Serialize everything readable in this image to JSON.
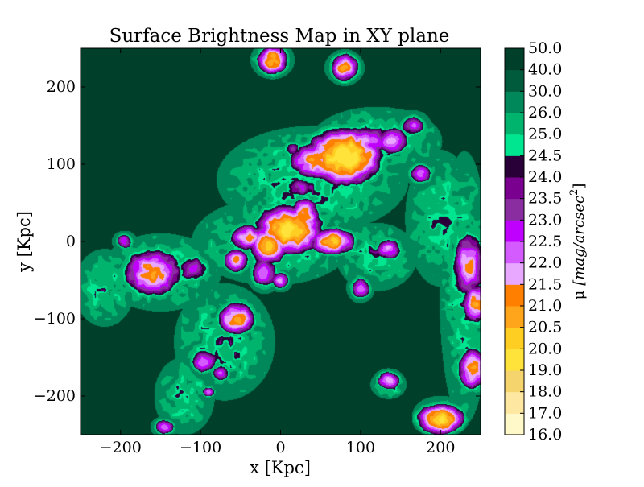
{
  "chart_data": {
    "type": "heatmap",
    "title": "Surface Brightness Map in XY plane",
    "xlabel": "x [Kpc]",
    "ylabel": "y [Kpc]",
    "xlim": [
      -250,
      250
    ],
    "ylim": [
      -250,
      250
    ],
    "x_ticks": [
      -200,
      -100,
      0,
      100,
      200
    ],
    "x_tick_labels": [
      "−200",
      "−100",
      "0",
      "100",
      "200"
    ],
    "y_ticks": [
      -200,
      -100,
      0,
      100,
      200
    ],
    "y_tick_labels": [
      "−200",
      "−100",
      "0",
      "100",
      "200"
    ],
    "grid": false,
    "colorbar": {
      "label_mu": "μ",
      "label_units": "[mag/arcsec",
      "label_exp": "2",
      "label_close": "]",
      "levels": [
        16.0,
        17.0,
        18.0,
        19.0,
        20.0,
        20.5,
        21.0,
        21.5,
        22.0,
        22.5,
        23.0,
        23.5,
        24.0,
        24.5,
        25.0,
        26.0,
        30.0,
        40.0,
        50.0
      ],
      "level_labels": [
        "16.0",
        "17.0",
        "18.0",
        "19.0",
        "20.0",
        "20.5",
        "21.0",
        "21.5",
        "22.0",
        "22.5",
        "23.0",
        "23.5",
        "24.0",
        "24.5",
        "25.0",
        "26.0",
        "30.0",
        "40.0",
        "50.0"
      ],
      "colors": [
        "#fff8c8",
        "#fee7a0",
        "#f5d46e",
        "#ffe23a",
        "#ffce22",
        "#ffa51c",
        "#ff7f00",
        "#e8a8ff",
        "#d45cff",
        "#bf00ff",
        "#8a2da0",
        "#7a0090",
        "#2a0038",
        "#00e690",
        "#00b46e",
        "#00875a",
        "#005a3c",
        "#00402a"
      ]
    },
    "background_color": "#00402a",
    "blobs": [
      {
        "x": 80,
        "y": 110,
        "sx": 28,
        "sy": 22,
        "peak": 19.5
      },
      {
        "x": 45,
        "y": 105,
        "sx": 22,
        "sy": 16,
        "peak": 21.0
      },
      {
        "x": 110,
        "y": 130,
        "sx": 20,
        "sy": 14,
        "peak": 22.0
      },
      {
        "x": 140,
        "y": 130,
        "sx": 14,
        "sy": 12,
        "peak": 21.5
      },
      {
        "x": 165,
        "y": 150,
        "sx": 12,
        "sy": 10,
        "peak": 22.5
      },
      {
        "x": 175,
        "y": 88,
        "sx": 10,
        "sy": 9,
        "peak": 22.0
      },
      {
        "x": 25,
        "y": 70,
        "sx": 18,
        "sy": 10,
        "peak": 23.0
      },
      {
        "x": 15,
        "y": 120,
        "sx": 10,
        "sy": 8,
        "peak": 23.5
      },
      {
        "x": 10,
        "y": 15,
        "sx": 26,
        "sy": 20,
        "peak": 20.0
      },
      {
        "x": -15,
        "y": -5,
        "sx": 16,
        "sy": 16,
        "peak": 20.5
      },
      {
        "x": -40,
        "y": 5,
        "sx": 16,
        "sy": 12,
        "peak": 21.5
      },
      {
        "x": 30,
        "y": 35,
        "sx": 12,
        "sy": 14,
        "peak": 21.0
      },
      {
        "x": -20,
        "y": -40,
        "sx": 12,
        "sy": 14,
        "peak": 22.0
      },
      {
        "x": 65,
        "y": 0,
        "sx": 18,
        "sy": 11,
        "peak": 20.5
      },
      {
        "x": -55,
        "y": -25,
        "sx": 11,
        "sy": 11,
        "peak": 21.5
      },
      {
        "x": -160,
        "y": -40,
        "sx": 24,
        "sy": 20,
        "peak": 21.0
      },
      {
        "x": -110,
        "y": -35,
        "sx": 16,
        "sy": 14,
        "peak": 23.0
      },
      {
        "x": -195,
        "y": 0,
        "sx": 8,
        "sy": 7,
        "peak": 22.5
      },
      {
        "x": -55,
        "y": -100,
        "sx": 16,
        "sy": 14,
        "peak": 21.0
      },
      {
        "x": -95,
        "y": -155,
        "sx": 12,
        "sy": 11,
        "peak": 22.0
      },
      {
        "x": -75,
        "y": -170,
        "sx": 9,
        "sy": 8,
        "peak": 22.5
      },
      {
        "x": -145,
        "y": -240,
        "sx": 9,
        "sy": 7,
        "peak": 22.0
      },
      {
        "x": -90,
        "y": -195,
        "sx": 6,
        "sy": 5,
        "peak": 22.5
      },
      {
        "x": 135,
        "y": -10,
        "sx": 12,
        "sy": 10,
        "peak": 22.0
      },
      {
        "x": 100,
        "y": -60,
        "sx": 9,
        "sy": 10,
        "peak": 22.0
      },
      {
        "x": 235,
        "y": -30,
        "sx": 14,
        "sy": 28,
        "peak": 21.5
      },
      {
        "x": 245,
        "y": -80,
        "sx": 12,
        "sy": 16,
        "peak": 21.0
      },
      {
        "x": 240,
        "y": -165,
        "sx": 12,
        "sy": 18,
        "peak": 21.0
      },
      {
        "x": 200,
        "y": -230,
        "sx": 18,
        "sy": 12,
        "peak": 20.0
      },
      {
        "x": 135,
        "y": -180,
        "sx": 10,
        "sy": 8,
        "peak": 21.5
      },
      {
        "x": -10,
        "y": 235,
        "sx": 12,
        "sy": 12,
        "peak": 20.5
      },
      {
        "x": 80,
        "y": 225,
        "sx": 12,
        "sy": 12,
        "peak": 21.0
      },
      {
        "x": 0,
        "y": -50,
        "sx": 8,
        "sy": 8,
        "peak": 22.0
      }
    ],
    "halos": [
      {
        "x": 40,
        "y": 80,
        "sx": 95,
        "sy": 55,
        "level": 24.7
      },
      {
        "x": 120,
        "y": 130,
        "sx": 65,
        "sy": 35,
        "level": 24.7
      },
      {
        "x": -10,
        "y": 0,
        "sx": 80,
        "sy": 45,
        "level": 24.6
      },
      {
        "x": -150,
        "y": -40,
        "sx": 60,
        "sy": 40,
        "level": 24.7
      },
      {
        "x": -70,
        "y": -130,
        "sx": 50,
        "sy": 60,
        "level": 24.8
      },
      {
        "x": -120,
        "y": -200,
        "sx": 30,
        "sy": 40,
        "level": 24.9
      },
      {
        "x": 230,
        "y": -60,
        "sx": 25,
        "sy": 140,
        "level": 24.7
      },
      {
        "x": 200,
        "y": 30,
        "sx": 35,
        "sy": 70,
        "level": 24.9
      },
      {
        "x": 200,
        "y": -225,
        "sx": 28,
        "sy": 20,
        "level": 24.8
      },
      {
        "x": 120,
        "y": -20,
        "sx": 40,
        "sy": 35,
        "level": 24.8
      },
      {
        "x": -220,
        "y": -60,
        "sx": 30,
        "sy": 40,
        "level": 24.9
      },
      {
        "x": -10,
        "y": 235,
        "sx": 22,
        "sy": 20,
        "level": 24.8
      },
      {
        "x": 80,
        "y": 225,
        "sx": 20,
        "sy": 18,
        "level": 24.8
      },
      {
        "x": 135,
        "y": -185,
        "sx": 18,
        "sy": 15,
        "level": 24.8
      }
    ]
  }
}
